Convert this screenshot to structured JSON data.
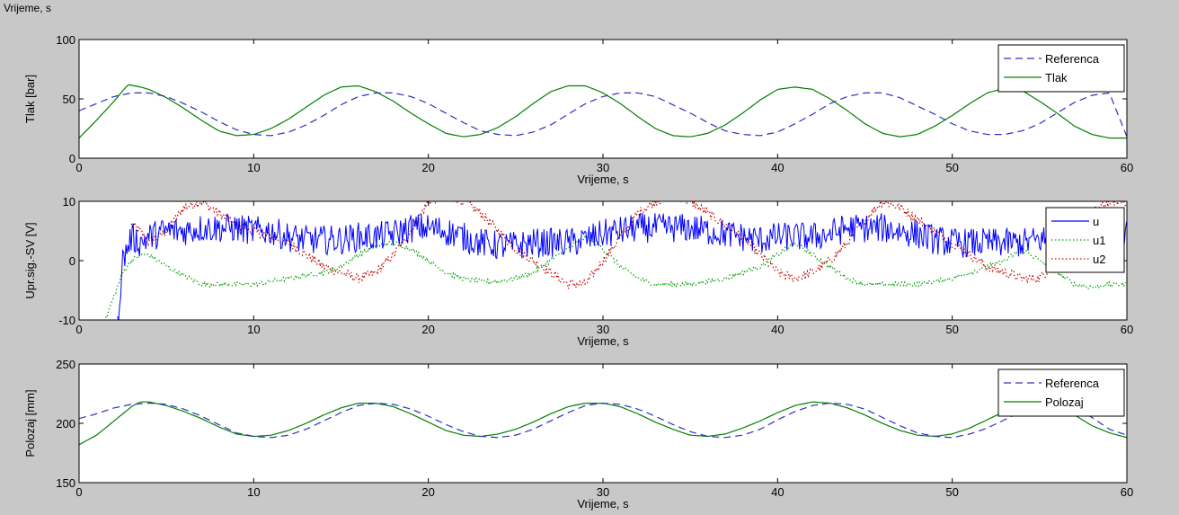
{
  "figure": {
    "top_label": "Vrijeme, s",
    "background": "#c8c8c8"
  },
  "chart_data": [
    {
      "type": "line",
      "xlabel": "Vrijeme, s",
      "ylabel": "Tlak [bar]",
      "xlim": [
        0,
        60
      ],
      "ylim": [
        0,
        100
      ],
      "xticks": [
        0,
        10,
        20,
        30,
        40,
        50,
        60
      ],
      "yticks": [
        0,
        50,
        100
      ],
      "grid": false,
      "legend_position": "top-right",
      "series": [
        {
          "name": "Referenca",
          "color": "#3030c0",
          "dash": "dashed",
          "x": [
            0,
            1,
            2,
            3,
            4,
            5,
            6,
            7,
            8,
            9,
            10,
            11,
            12,
            13,
            14,
            15,
            16,
            17,
            18,
            19,
            20,
            21,
            22,
            23,
            24,
            25,
            26,
            27,
            28,
            29,
            30,
            31,
            32,
            33,
            34,
            35,
            36,
            37,
            38,
            39,
            40,
            41,
            42,
            43,
            44,
            45,
            46,
            47,
            48,
            49,
            50,
            51,
            52,
            53,
            54,
            55,
            56,
            57,
            58,
            59,
            60
          ],
          "y": [
            40,
            46,
            52,
            55,
            55,
            52,
            46,
            39,
            31,
            24,
            20,
            19,
            22,
            28,
            36,
            45,
            52,
            55,
            55,
            52,
            46,
            38,
            30,
            23,
            20,
            19,
            22,
            28,
            37,
            46,
            52,
            55,
            55,
            52,
            45,
            38,
            30,
            23,
            20,
            19,
            22,
            29,
            37,
            46,
            52,
            55,
            55,
            51,
            44,
            37,
            29,
            23,
            20,
            20,
            23,
            29,
            38,
            47,
            53,
            55,
            18
          ]
        },
        {
          "name": "Tlak",
          "color": "#008000",
          "dash": "solid",
          "x": [
            0,
            1,
            2,
            2.8,
            3.5,
            4,
            5,
            6,
            7,
            8,
            9,
            10,
            11,
            12,
            13,
            14,
            15,
            16,
            17,
            18,
            19,
            20,
            21,
            22,
            23,
            24,
            25,
            26,
            27,
            28,
            29,
            30,
            31,
            32,
            33,
            34,
            35,
            36,
            37,
            38,
            39,
            40,
            41,
            42,
            43,
            44,
            45,
            46,
            47,
            48,
            49,
            50,
            51,
            52,
            53,
            54,
            55,
            56,
            57,
            58,
            59,
            60
          ],
          "y": [
            17,
            32,
            48,
            62,
            60,
            58,
            51,
            42,
            32,
            23,
            19,
            20,
            25,
            33,
            43,
            53,
            60,
            61,
            56,
            48,
            38,
            29,
            21,
            18,
            20,
            26,
            35,
            46,
            56,
            61,
            61,
            55,
            46,
            35,
            25,
            19,
            18,
            21,
            28,
            38,
            49,
            58,
            60,
            58,
            50,
            40,
            29,
            21,
            18,
            20,
            27,
            36,
            46,
            55,
            59,
            57,
            48,
            38,
            27,
            20,
            17,
            17
          ]
        }
      ]
    },
    {
      "type": "line",
      "xlabel": "Vrijeme, s",
      "ylabel": "Upr.sig.-SV [V]",
      "xlim": [
        0,
        60
      ],
      "ylim": [
        -10,
        10
      ],
      "xticks": [
        0,
        10,
        20,
        30,
        40,
        50,
        60
      ],
      "yticks": [
        -10,
        0,
        10
      ],
      "grid": false,
      "legend_position": "top-right",
      "series": [
        {
          "name": "u",
          "color": "#0000ff",
          "dash": "solid",
          "noise_amplitude": 2.5,
          "x": [
            2.2,
            2.5,
            3,
            3.5,
            4,
            5,
            6,
            7,
            8,
            9,
            10,
            11,
            12,
            13,
            14,
            15,
            16,
            17,
            18,
            19,
            20,
            21,
            22,
            23,
            24,
            25,
            26,
            27,
            28,
            29,
            30,
            31,
            32,
            33,
            34,
            35,
            36,
            37,
            38,
            39,
            40,
            41,
            42,
            43,
            44,
            45,
            46,
            47,
            48,
            49,
            50,
            51,
            52,
            53,
            54,
            55,
            56,
            57,
            58,
            59,
            60
          ],
          "y": [
            -10,
            0,
            4,
            3,
            4,
            5,
            5,
            5.5,
            5.5,
            5.5,
            5,
            5,
            4,
            3.5,
            3.5,
            3.5,
            4,
            4,
            4.5,
            5.5,
            5.5,
            5,
            4,
            3,
            2.5,
            2.5,
            3,
            3,
            3,
            3.5,
            4.5,
            5,
            5.5,
            5.5,
            5.5,
            5.5,
            5,
            4.5,
            4,
            3.5,
            4,
            4,
            4,
            4.5,
            5.5,
            5.5,
            5.5,
            5,
            4.5,
            3.5,
            3,
            3,
            3,
            3,
            3,
            3.5,
            4,
            4,
            4,
            4.5,
            5
          ]
        },
        {
          "name": "u1",
          "color": "#00a000",
          "dash": "dotted",
          "noise_amplitude": 0.4,
          "x": [
            1.5,
            2,
            2.5,
            3,
            3.5,
            4,
            5,
            6,
            7,
            8,
            9,
            10,
            11,
            12,
            13,
            14,
            15,
            16,
            17,
            18,
            19,
            20,
            21,
            22,
            23,
            24,
            25,
            26,
            27,
            28,
            29,
            30,
            31,
            32,
            33,
            34,
            35,
            36,
            37,
            38,
            39,
            40,
            41,
            42,
            43,
            44,
            45,
            46,
            47,
            48,
            49,
            50,
            51,
            52,
            53,
            54,
            55,
            56,
            57,
            58,
            59,
            60
          ],
          "y": [
            -10,
            -6,
            -2,
            0,
            1,
            1,
            -1,
            -2.5,
            -4,
            -4,
            -4,
            -4,
            -3.5,
            -3,
            -2.5,
            -2,
            -1,
            1,
            2.5,
            3,
            2,
            0,
            -2,
            -3,
            -3.5,
            -3.5,
            -3,
            -2,
            0,
            2,
            4,
            2,
            -1,
            -3,
            -4,
            -4,
            -4,
            -3.5,
            -3,
            -2,
            -1,
            1,
            3,
            1,
            -1,
            -3,
            -4,
            -4,
            -4,
            -4,
            -3.5,
            -3,
            -2,
            -1,
            0,
            2,
            0,
            -2,
            -4,
            -4.5,
            -4,
            -4
          ]
        },
        {
          "name": "u2",
          "color": "#c00000",
          "dash": "dotted",
          "noise_amplitude": 0.8,
          "x": [
            3,
            3.5,
            4,
            5,
            6,
            7,
            8,
            9,
            10,
            11,
            12,
            13,
            14,
            15,
            16,
            17,
            18,
            19,
            20,
            21,
            22,
            23,
            24,
            25,
            26,
            27,
            28,
            29,
            30,
            31,
            32,
            33,
            34,
            35,
            36,
            37,
            38,
            39,
            40,
            41,
            42,
            43,
            44,
            45,
            46,
            47,
            48,
            49,
            50,
            51,
            52,
            53,
            54,
            55,
            56,
            57,
            58,
            59,
            60
          ],
          "y": [
            6,
            5,
            3,
            5,
            9,
            10,
            8,
            6,
            5,
            4,
            3,
            1,
            -1,
            -2,
            -3,
            -2,
            1,
            5,
            10,
            11,
            10,
            8,
            5,
            2,
            0,
            -2,
            -4,
            -4,
            0,
            4,
            8,
            10,
            11,
            10,
            8,
            6,
            4,
            1,
            -2,
            -3,
            -2,
            0,
            3,
            7,
            10,
            9,
            7,
            5,
            3,
            1,
            -1,
            -2,
            -3,
            -3,
            0,
            4,
            8,
            10,
            10
          ]
        }
      ]
    },
    {
      "type": "line",
      "xlabel": "Vrijeme, s",
      "ylabel": "Polozaj [mm]",
      "xlim": [
        0,
        60
      ],
      "ylim": [
        150,
        250
      ],
      "xticks": [
        0,
        10,
        20,
        30,
        40,
        50,
        60
      ],
      "yticks": [
        150,
        200,
        250
      ],
      "grid": false,
      "legend_position": "top-right",
      "series": [
        {
          "name": "Referenca",
          "color": "#3030c0",
          "dash": "dashed",
          "x": [
            0,
            1,
            2,
            3,
            4,
            5,
            6,
            7,
            8,
            9,
            10,
            11,
            12,
            13,
            14,
            15,
            16,
            17,
            18,
            19,
            20,
            21,
            22,
            23,
            24,
            25,
            26,
            27,
            28,
            29,
            30,
            31,
            32,
            33,
            34,
            35,
            36,
            37,
            38,
            39,
            40,
            41,
            42,
            43,
            44,
            45,
            46,
            47,
            48,
            49,
            50,
            51,
            52,
            53,
            54,
            55,
            56,
            57,
            58,
            59,
            60
          ],
          "y": [
            204,
            208,
            213,
            216,
            217,
            216,
            212,
            206,
            199,
            192,
            189,
            188,
            190,
            195,
            202,
            209,
            215,
            217,
            216,
            212,
            206,
            199,
            193,
            189,
            188,
            190,
            195,
            202,
            209,
            215,
            217,
            216,
            212,
            206,
            199,
            193,
            189,
            188,
            190,
            195,
            203,
            210,
            215,
            217,
            216,
            212,
            205,
            198,
            192,
            189,
            188,
            191,
            196,
            203,
            210,
            215,
            217,
            214,
            205,
            195,
            190
          ]
        },
        {
          "name": "Polozaj",
          "color": "#008000",
          "dash": "solid",
          "x": [
            0,
            1,
            2,
            3,
            3.5,
            4,
            5,
            6,
            7,
            8,
            9,
            10,
            11,
            12,
            13,
            14,
            15,
            16,
            17,
            18,
            19,
            20,
            21,
            22,
            23,
            24,
            25,
            26,
            27,
            28,
            29,
            30,
            31,
            32,
            33,
            34,
            35,
            36,
            37,
            38,
            39,
            40,
            41,
            42,
            43,
            44,
            45,
            46,
            47,
            48,
            49,
            50,
            51,
            52,
            53,
            54,
            55,
            56,
            57,
            58,
            59,
            60
          ],
          "y": [
            182,
            190,
            202,
            214,
            218,
            218,
            215,
            210,
            204,
            197,
            191,
            189,
            190,
            194,
            200,
            207,
            213,
            217,
            217,
            214,
            208,
            201,
            194,
            190,
            189,
            191,
            195,
            201,
            208,
            214,
            217,
            217,
            214,
            208,
            201,
            195,
            190,
            189,
            191,
            196,
            202,
            209,
            215,
            218,
            217,
            213,
            207,
            200,
            194,
            190,
            189,
            191,
            196,
            203,
            210,
            215,
            217,
            215,
            207,
            198,
            192,
            188
          ]
        }
      ]
    }
  ]
}
